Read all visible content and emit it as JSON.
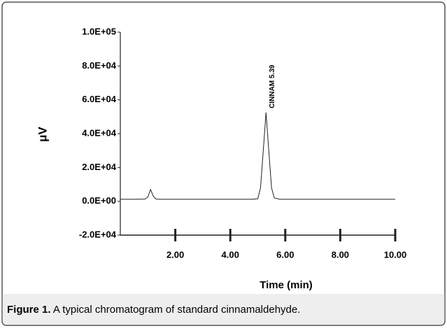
{
  "chart_data": {
    "type": "line",
    "y_label": "μV",
    "x_label": "Time (min)",
    "annotation": "CINNAM 5.39",
    "x": [
      0,
      0.5,
      0.9,
      1.0,
      1.1,
      1.2,
      1.3,
      1.5,
      2,
      3,
      4,
      4.8,
      5.0,
      5.1,
      5.2,
      5.3,
      5.4,
      5.5,
      5.6,
      5.8,
      6,
      7,
      8,
      9,
      10
    ],
    "series": [
      {
        "color": "#222222",
        "values": [
          1200,
          1200,
          1300,
          2500,
          7000,
          3000,
          1300,
          1200,
          1200,
          1200,
          1200,
          1200,
          1500,
          8000,
          30000,
          52500,
          30000,
          8000,
          2000,
          1200,
          1200,
          1200,
          1200,
          1200,
          1200
        ]
      }
    ],
    "xlim": [
      0,
      10
    ],
    "xticks": [
      {
        "value": 2,
        "label": "2.00"
      },
      {
        "value": 4,
        "label": "4.00"
      },
      {
        "value": 6,
        "label": "6.00"
      },
      {
        "value": 8,
        "label": "8.00"
      },
      {
        "value": 10,
        "label": "10.00"
      }
    ],
    "ylim": [
      -20000,
      100000
    ],
    "yticks": [
      {
        "value": -20000,
        "label": "-2.0E+04"
      },
      {
        "value": 0,
        "label": "0.0E+00"
      },
      {
        "value": 20000,
        "label": "2.0E+04"
      },
      {
        "value": 40000,
        "label": "4.0E+04"
      },
      {
        "value": 60000,
        "label": "6.0E+04"
      },
      {
        "value": 80000,
        "label": "8.0E+04"
      },
      {
        "value": 100000,
        "label": "1.0E+05"
      }
    ]
  },
  "caption": {
    "label": "Figure 1.",
    "text": "A typical chromatogram of standard cinnamaldehyde."
  }
}
